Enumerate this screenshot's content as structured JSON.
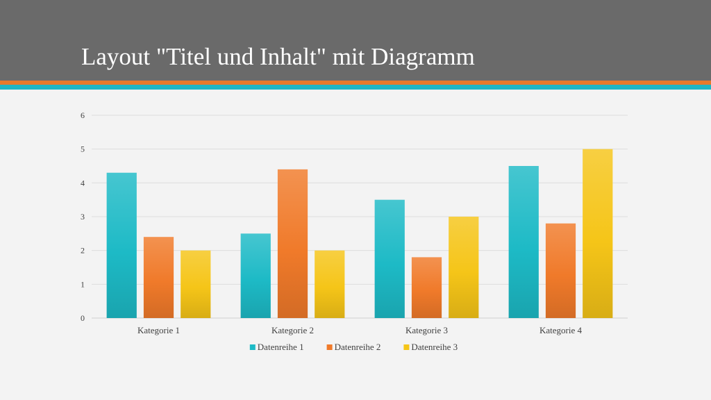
{
  "slide": {
    "title": "Layout \"Titel und Inhalt\" mit Diagramm"
  },
  "colors": {
    "header": "#6a6a6a",
    "accent_orange": "#e8792a",
    "accent_teal": "#1fb5c3",
    "background": "#f3f3f3"
  },
  "chart_data": {
    "type": "bar",
    "categories": [
      "Kategorie 1",
      "Kategorie 2",
      "Kategorie 3",
      "Kategorie 4"
    ],
    "series": [
      {
        "name": "Datenreihe 1",
        "values": [
          4.3,
          2.5,
          3.5,
          4.5
        ],
        "color": "#1dbac6"
      },
      {
        "name": "Datenreihe 2",
        "values": [
          2.4,
          4.4,
          1.8,
          2.8
        ],
        "color": "#f07a2a"
      },
      {
        "name": "Datenreihe 3",
        "values": [
          2,
          2,
          3,
          5
        ],
        "color": "#f5c518"
      }
    ],
    "ylim": [
      0,
      6
    ],
    "yticks": [
      0,
      1,
      2,
      3,
      4,
      5,
      6
    ],
    "grid": true,
    "legend": "bottom",
    "title": "",
    "xlabel": "",
    "ylabel": ""
  }
}
